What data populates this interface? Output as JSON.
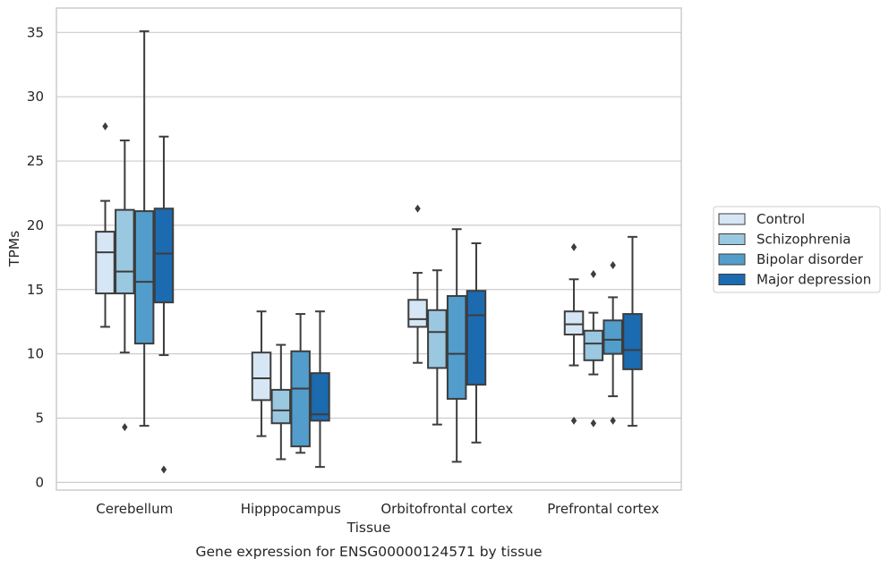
{
  "chart_data": {
    "type": "boxplot",
    "title": "",
    "caption": "Gene expression for ENSG00000124571 by tissue",
    "xlabel": "Tissue",
    "ylabel": "TPMs",
    "ylim": [
      -0.6,
      36.9
    ],
    "yticks": [
      0,
      5,
      10,
      15,
      20,
      25,
      30,
      35
    ],
    "grid": "horizontal",
    "legend_position": "right",
    "categories": [
      "Cerebellum",
      "Hipppocampus",
      "Orbitofrontal cortex",
      "Prefrontal cortex"
    ],
    "series": [
      {
        "name": "Control",
        "color": "#d6e6f4",
        "boxes": [
          {
            "whislo": 12.1,
            "q1": 14.7,
            "med": 17.9,
            "q3": 19.5,
            "whishi": 21.9,
            "fliers": [
              27.7
            ]
          },
          {
            "whislo": 3.6,
            "q1": 6.4,
            "med": 8.1,
            "q3": 10.1,
            "whishi": 13.3,
            "fliers": []
          },
          {
            "whislo": 9.3,
            "q1": 12.1,
            "med": 12.7,
            "q3": 14.2,
            "whishi": 16.3,
            "fliers": [
              21.3
            ]
          },
          {
            "whislo": 9.1,
            "q1": 11.5,
            "med": 12.3,
            "q3": 13.3,
            "whishi": 15.8,
            "fliers": [
              18.3,
              4.8
            ]
          }
        ]
      },
      {
        "name": "Schizophrenia",
        "color": "#9ac8e0",
        "boxes": [
          {
            "whislo": 10.1,
            "q1": 14.7,
            "med": 16.4,
            "q3": 21.2,
            "whishi": 26.6,
            "fliers": [
              4.3
            ]
          },
          {
            "whislo": 1.8,
            "q1": 4.6,
            "med": 5.6,
            "q3": 7.2,
            "whishi": 10.7,
            "fliers": []
          },
          {
            "whislo": 4.5,
            "q1": 8.9,
            "med": 11.7,
            "q3": 13.4,
            "whishi": 16.5,
            "fliers": []
          },
          {
            "whislo": 8.4,
            "q1": 9.5,
            "med": 10.8,
            "q3": 11.8,
            "whishi": 13.2,
            "fliers": [
              16.2,
              4.6
            ]
          }
        ]
      },
      {
        "name": "Bipolar disorder",
        "color": "#529dcc",
        "boxes": [
          {
            "whislo": 4.4,
            "q1": 10.8,
            "med": 15.6,
            "q3": 21.1,
            "whishi": 35.1,
            "fliers": []
          },
          {
            "whislo": 2.3,
            "q1": 2.8,
            "med": 7.3,
            "q3": 10.2,
            "whishi": 13.1,
            "fliers": []
          },
          {
            "whislo": 1.6,
            "q1": 6.5,
            "med": 10.0,
            "q3": 14.5,
            "whishi": 19.7,
            "fliers": []
          },
          {
            "whislo": 6.7,
            "q1": 10.0,
            "med": 11.1,
            "q3": 12.6,
            "whishi": 14.4,
            "fliers": [
              16.9,
              4.8
            ]
          }
        ]
      },
      {
        "name": "Major depression",
        "color": "#1c6aaf",
        "boxes": [
          {
            "whislo": 9.9,
            "q1": 14.0,
            "med": 17.8,
            "q3": 21.3,
            "whishi": 26.9,
            "fliers": [
              1.0
            ]
          },
          {
            "whislo": 1.2,
            "q1": 4.8,
            "med": 5.3,
            "q3": 8.5,
            "whishi": 13.3,
            "fliers": []
          },
          {
            "whislo": 3.1,
            "q1": 7.6,
            "med": 13.0,
            "q3": 14.9,
            "whishi": 18.6,
            "fliers": []
          },
          {
            "whislo": 4.4,
            "q1": 8.8,
            "med": 10.3,
            "q3": 13.1,
            "whishi": 19.1,
            "fliers": []
          }
        ]
      }
    ]
  }
}
